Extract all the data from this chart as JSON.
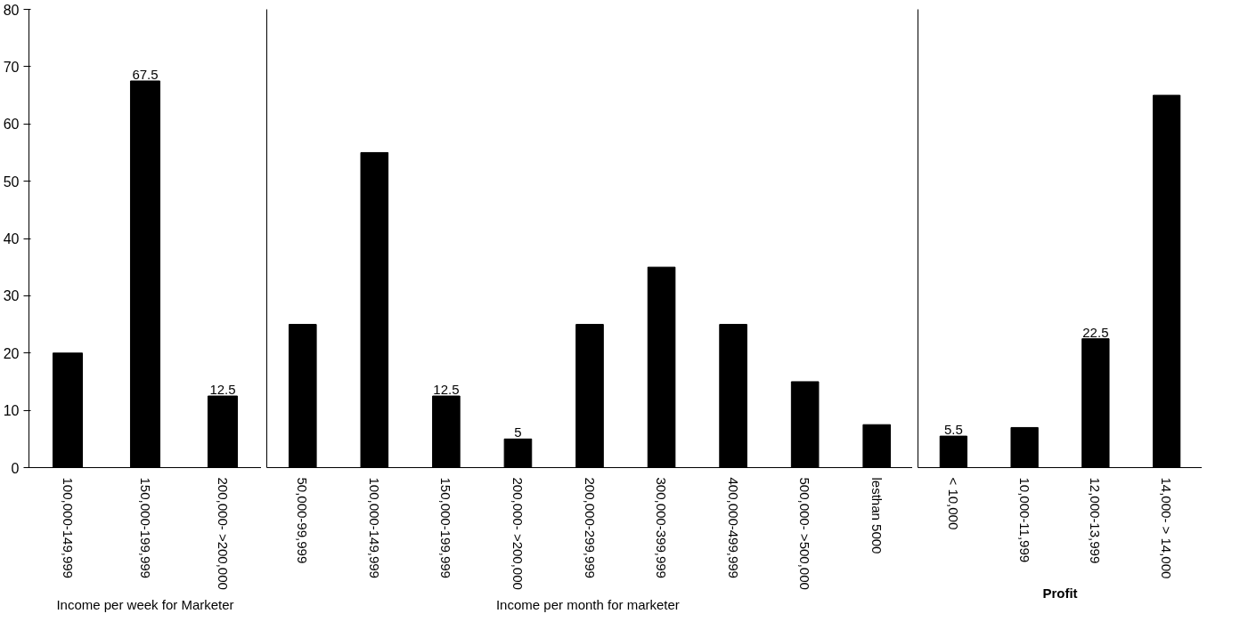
{
  "chart_data": [
    {
      "type": "bar",
      "xlabel": "Income per week for Marketer",
      "categories": [
        "100,000-149,999",
        "150,000-199,999",
        "200,000- >200,000"
      ],
      "values": [
        20,
        67.5,
        12.5
      ],
      "value_labels": [
        null,
        "67.5",
        "12.5"
      ],
      "color": "#000000",
      "ylim": [
        0,
        80
      ],
      "yticks": [
        0,
        10,
        20,
        30,
        40,
        50,
        60,
        70,
        80
      ],
      "grid": false
    },
    {
      "type": "bar",
      "xlabel": "Income per month for  marketer",
      "categories": [
        "50,000-99,999",
        "100,000-149,999",
        "150,000-199,999",
        "200,000- >200,000",
        "200,000-299,999",
        "300,000-399,999",
        "400,000-499,999",
        "500,000- >500,000",
        "lesthan 5000"
      ],
      "values": [
        25,
        55,
        12.5,
        5,
        25,
        35,
        25,
        15,
        7.5
      ],
      "value_labels": [
        null,
        null,
        "12.5",
        "5",
        null,
        null,
        null,
        null,
        null
      ],
      "color": "#000000",
      "ylim": [
        0,
        80
      ],
      "yticks": [
        0,
        10,
        20,
        30,
        40,
        50,
        60,
        70,
        80
      ],
      "grid": false,
      "tick_labels": "x"
    },
    {
      "type": "bar",
      "xlabel": "Profit",
      "categories": [
        "< 10,000",
        "10,000-11,999",
        "12,000-13,999",
        "14,000- > 14,000"
      ],
      "values": [
        5.5,
        7,
        22.5,
        65
      ],
      "value_labels": [
        "5.5",
        null,
        "22.5",
        null
      ],
      "color": "#000000",
      "ylim": [
        0,
        80
      ],
      "yticks": [
        0,
        10,
        20,
        30,
        40,
        50,
        60,
        70,
        80
      ],
      "grid": false,
      "tick_labels": "x"
    }
  ]
}
